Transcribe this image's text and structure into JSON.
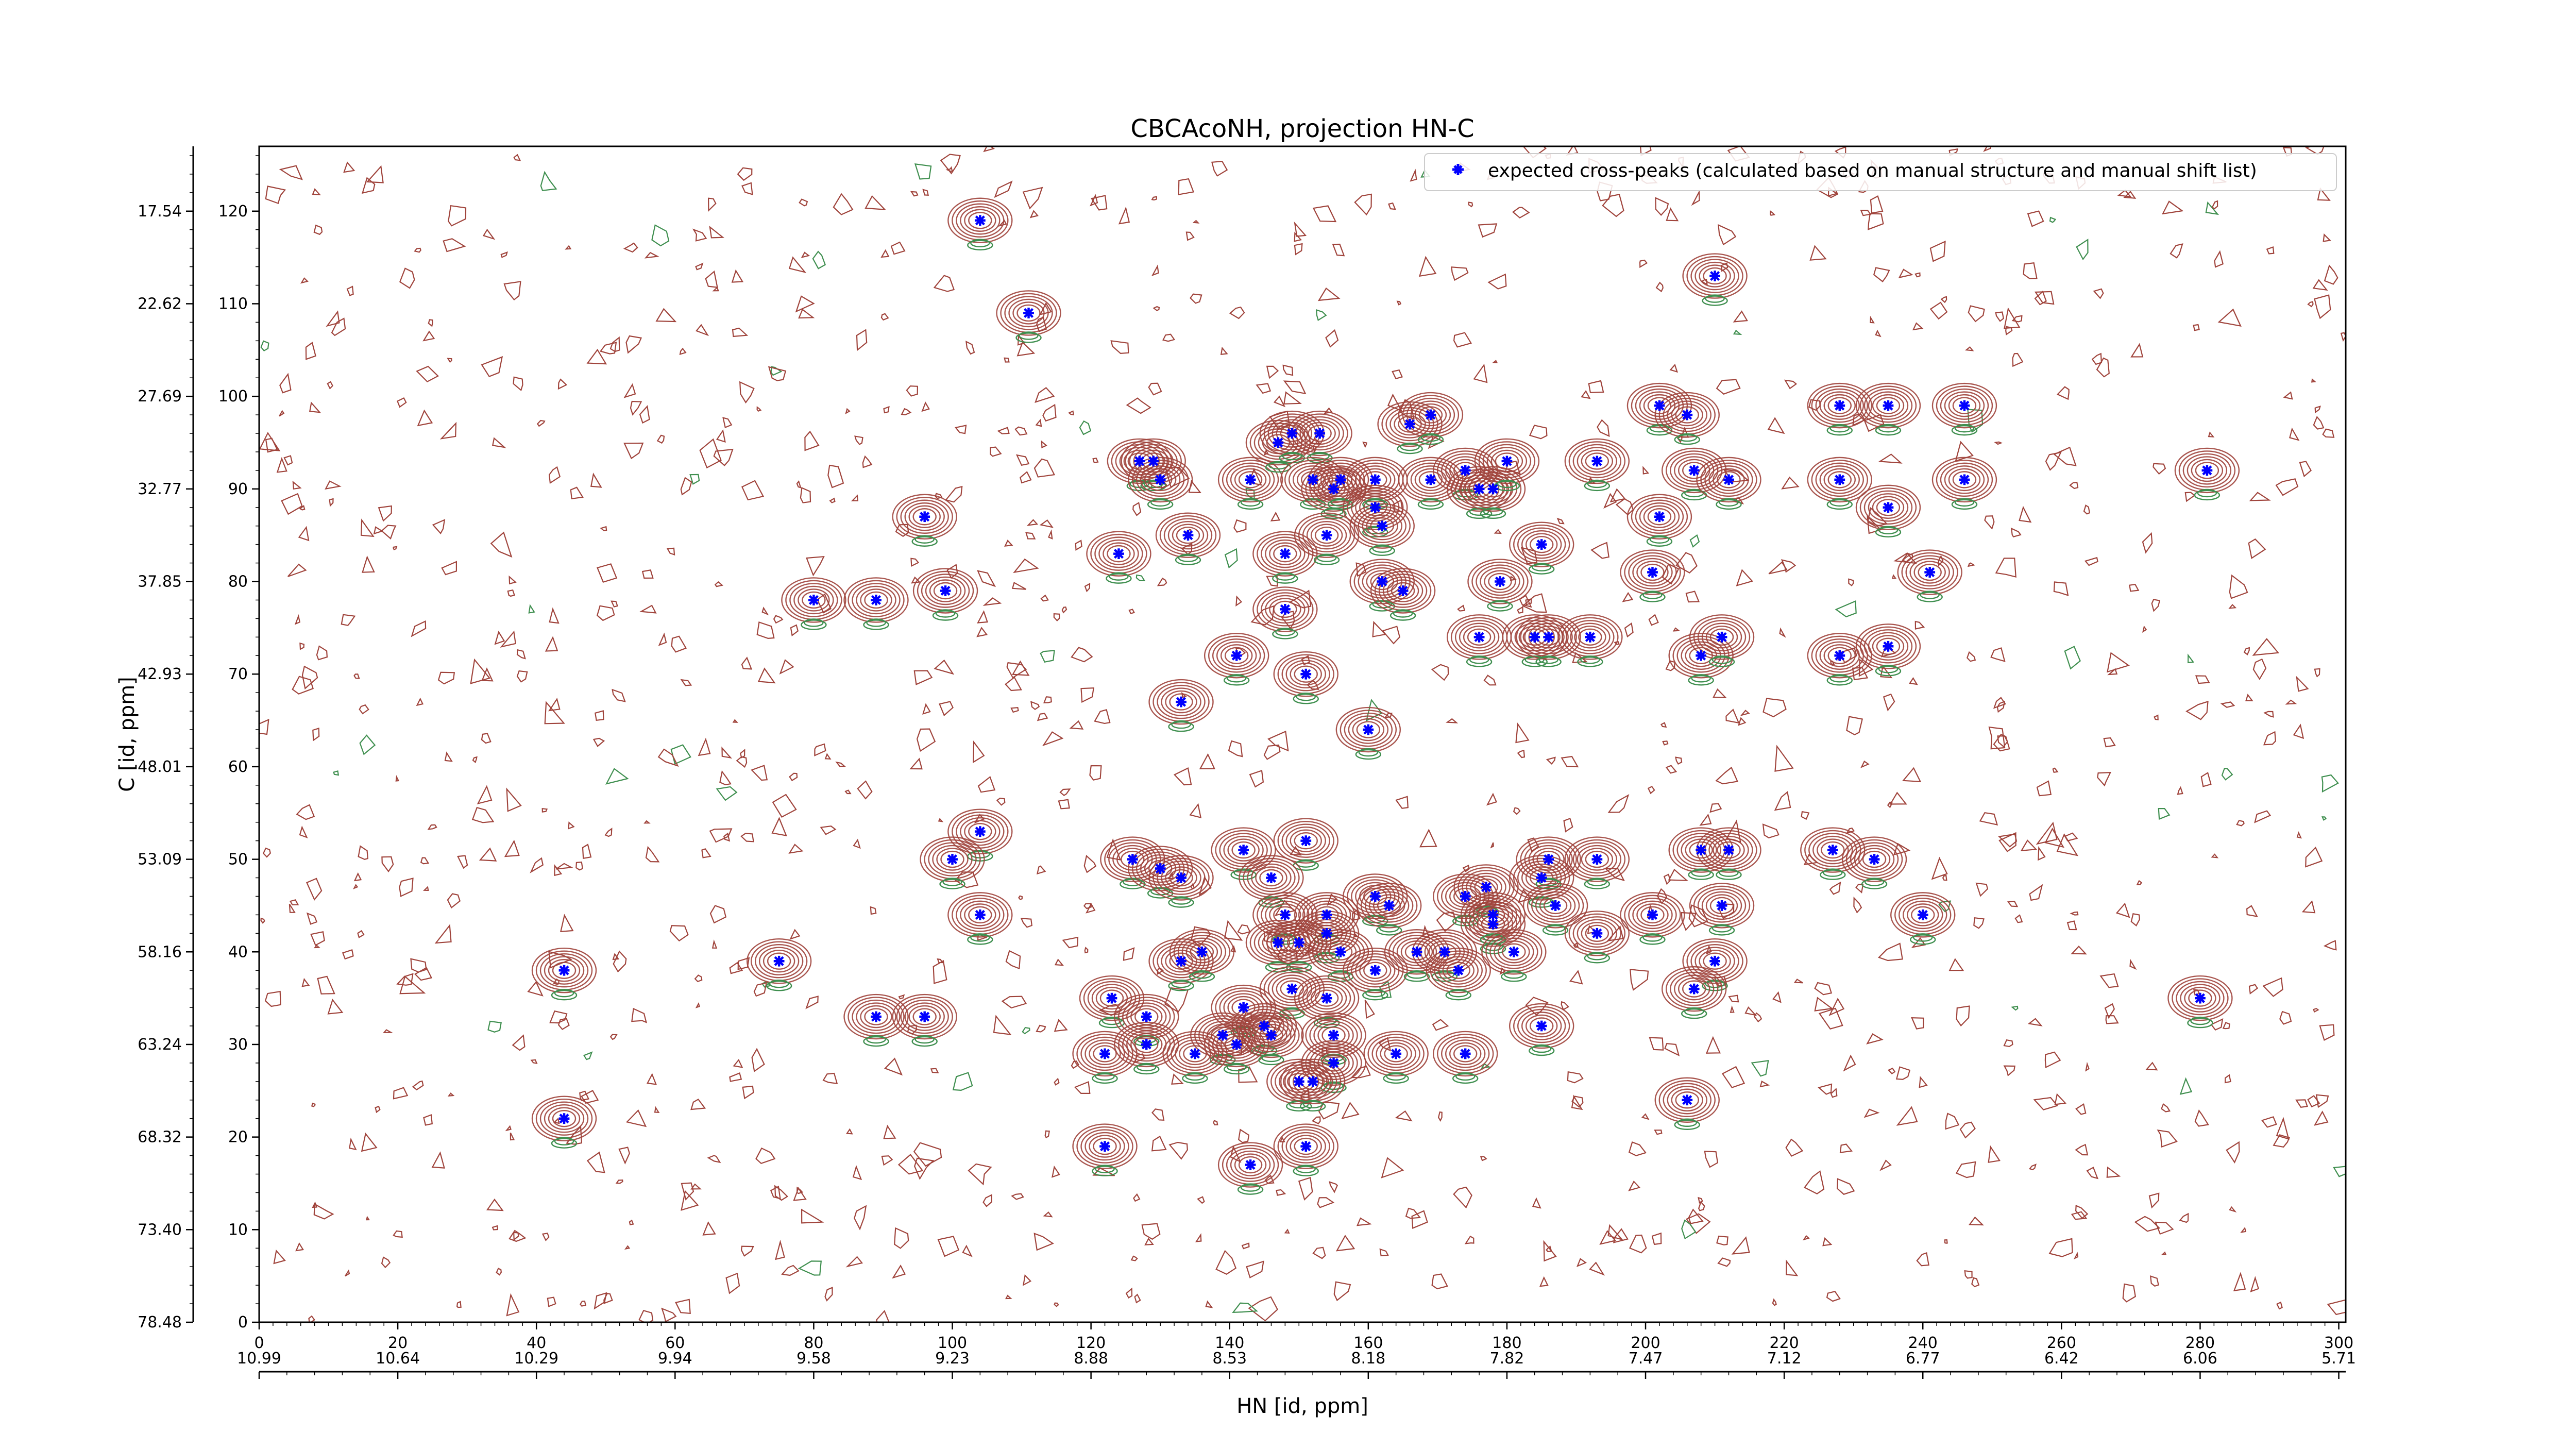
{
  "chart_data": {
    "type": "scatter",
    "title": "CBCAcoNH, projection HN-C",
    "xlabel": "HN [id, ppm]",
    "ylabel": "C [id, ppm]",
    "xlim": [
      0,
      301
    ],
    "ylim": [
      0,
      127
    ],
    "x_ticks": [
      0,
      20,
      40,
      60,
      80,
      100,
      120,
      140,
      160,
      180,
      200,
      220,
      240,
      260,
      280,
      300
    ],
    "y_ticks": [
      0,
      10,
      20,
      30,
      40,
      50,
      60,
      70,
      80,
      90,
      100,
      110,
      120
    ],
    "x_ppm_ticks": [
      {
        "x": 0,
        "label": "10.99"
      },
      {
        "x": 20,
        "label": "10.64"
      },
      {
        "x": 40,
        "label": "10.29"
      },
      {
        "x": 60,
        "label": "9.94"
      },
      {
        "x": 80,
        "label": "9.58"
      },
      {
        "x": 100,
        "label": "9.23"
      },
      {
        "x": 120,
        "label": "8.88"
      },
      {
        "x": 140,
        "label": "8.53"
      },
      {
        "x": 160,
        "label": "8.18"
      },
      {
        "x": 180,
        "label": "7.82"
      },
      {
        "x": 200,
        "label": "7.47"
      },
      {
        "x": 220,
        "label": "7.12"
      },
      {
        "x": 240,
        "label": "6.77"
      },
      {
        "x": 260,
        "label": "6.42"
      },
      {
        "x": 280,
        "label": "6.06"
      },
      {
        "x": 300,
        "label": "5.71"
      }
    ],
    "y_ppm_ticks": [
      {
        "y": 0,
        "label": "78.48"
      },
      {
        "y": 10,
        "label": "73.40"
      },
      {
        "y": 20,
        "label": "68.32"
      },
      {
        "y": 30,
        "label": "63.24"
      },
      {
        "y": 40,
        "label": "58.16"
      },
      {
        "y": 50,
        "label": "53.09"
      },
      {
        "y": 60,
        "label": "48.01"
      },
      {
        "y": 70,
        "label": "42.93"
      },
      {
        "y": 80,
        "label": "37.85"
      },
      {
        "y": 90,
        "label": "32.77"
      },
      {
        "y": 100,
        "label": "27.69"
      },
      {
        "y": 110,
        "label": "22.62"
      },
      {
        "y": 120,
        "label": "17.54"
      }
    ],
    "legend": {
      "label": "expected cross-peaks (calculated based on manual structure and manual shift list)",
      "position": "top-right"
    },
    "colors": {
      "marker": "#0000ff",
      "positive_contour": "#a0443c",
      "negative_contour": "#3f8f4f",
      "axes": "#000000"
    },
    "series": [
      {
        "name": "expected cross-peaks (calculated based on manual structure and manual shift list)",
        "points": [
          [
            104,
            119
          ],
          [
            111,
            109
          ],
          [
            210,
            113
          ],
          [
            127,
            93
          ],
          [
            129,
            93
          ],
          [
            130,
            91
          ],
          [
            143,
            91
          ],
          [
            147,
            95
          ],
          [
            149,
            96
          ],
          [
            153,
            96
          ],
          [
            152,
            91
          ],
          [
            155,
            90
          ],
          [
            156,
            91
          ],
          [
            161,
            88
          ],
          [
            161,
            91
          ],
          [
            166,
            97
          ],
          [
            169,
            98
          ],
          [
            169,
            91
          ],
          [
            174,
            92
          ],
          [
            176,
            90
          ],
          [
            178,
            90
          ],
          [
            180,
            93
          ],
          [
            193,
            93
          ],
          [
            202,
            99
          ],
          [
            206,
            98
          ],
          [
            207,
            92
          ],
          [
            212,
            91
          ],
          [
            228,
            99
          ],
          [
            235,
            99
          ],
          [
            246,
            99
          ],
          [
            228,
            91
          ],
          [
            246,
            91
          ],
          [
            281,
            92
          ],
          [
            96,
            87
          ],
          [
            134,
            85
          ],
          [
            148,
            83
          ],
          [
            154,
            85
          ],
          [
            162,
            86
          ],
          [
            185,
            84
          ],
          [
            202,
            87
          ],
          [
            235,
            88
          ],
          [
            124,
            83
          ],
          [
            80,
            78
          ],
          [
            89,
            78
          ],
          [
            99,
            79
          ],
          [
            148,
            77
          ],
          [
            162,
            80
          ],
          [
            165,
            79
          ],
          [
            179,
            80
          ],
          [
            201,
            81
          ],
          [
            241,
            81
          ],
          [
            141,
            72
          ],
          [
            151,
            70
          ],
          [
            176,
            74
          ],
          [
            184,
            74
          ],
          [
            186,
            74
          ],
          [
            192,
            74
          ],
          [
            208,
            72
          ],
          [
            211,
            74
          ],
          [
            228,
            72
          ],
          [
            235,
            73
          ],
          [
            133,
            67
          ],
          [
            160,
            64
          ],
          [
            104,
            53
          ],
          [
            100,
            50
          ],
          [
            126,
            50
          ],
          [
            130,
            49
          ],
          [
            133,
            48
          ],
          [
            142,
            51
          ],
          [
            151,
            52
          ],
          [
            146,
            48
          ],
          [
            161,
            46
          ],
          [
            163,
            45
          ],
          [
            174,
            46
          ],
          [
            177,
            47
          ],
          [
            185,
            48
          ],
          [
            186,
            50
          ],
          [
            193,
            50
          ],
          [
            208,
            51
          ],
          [
            212,
            51
          ],
          [
            227,
            51
          ],
          [
            233,
            50
          ],
          [
            104,
            44
          ],
          [
            148,
            44
          ],
          [
            154,
            44
          ],
          [
            178,
            43
          ],
          [
            178,
            44
          ],
          [
            187,
            45
          ],
          [
            193,
            42
          ],
          [
            201,
            44
          ],
          [
            211,
            45
          ],
          [
            240,
            44
          ],
          [
            44,
            38
          ],
          [
            75,
            39
          ],
          [
            133,
            39
          ],
          [
            136,
            40
          ],
          [
            147,
            41
          ],
          [
            150,
            41
          ],
          [
            154,
            42
          ],
          [
            156,
            40
          ],
          [
            161,
            38
          ],
          [
            167,
            40
          ],
          [
            171,
            40
          ],
          [
            173,
            38
          ],
          [
            181,
            40
          ],
          [
            210,
            39
          ],
          [
            207,
            36
          ],
          [
            123,
            35
          ],
          [
            128,
            33
          ],
          [
            142,
            34
          ],
          [
            149,
            36
          ],
          [
            154,
            35
          ],
          [
            89,
            33
          ],
          [
            96,
            33
          ],
          [
            139,
            31
          ],
          [
            145,
            32
          ],
          [
            122,
            29
          ],
          [
            128,
            30
          ],
          [
            135,
            29
          ],
          [
            141,
            30
          ],
          [
            146,
            31
          ],
          [
            155,
            31
          ],
          [
            164,
            29
          ],
          [
            174,
            29
          ],
          [
            185,
            32
          ],
          [
            280,
            35
          ],
          [
            150,
            26
          ],
          [
            155,
            28
          ],
          [
            152,
            26
          ],
          [
            44,
            22
          ],
          [
            122,
            19
          ],
          [
            143,
            17
          ],
          [
            151,
            19
          ],
          [
            206,
            24
          ]
        ]
      }
    ]
  }
}
